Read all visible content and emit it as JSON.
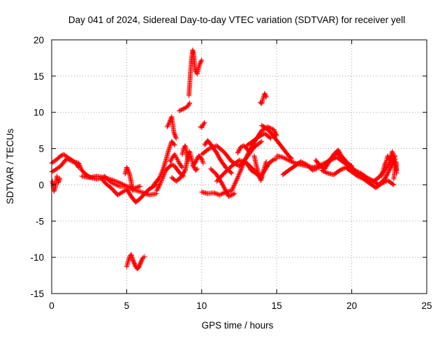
{
  "chart_data": {
    "type": "scatter",
    "title": "Day 041 of 2024, Sidereal Day-to-day VTEC variation (SDTVAR) for receiver yell",
    "xlabel": "GPS time / hours",
    "ylabel": "SDTVAR / TECUs",
    "xlim": [
      0,
      25
    ],
    "ylim": [
      -15,
      20
    ],
    "x_ticks": [
      0,
      5,
      10,
      15,
      20,
      25
    ],
    "y_ticks": [
      -15,
      -10,
      -5,
      0,
      5,
      10,
      15,
      20
    ],
    "x_tick_labels": [
      "0",
      "5",
      "10",
      "15",
      "20",
      "25"
    ],
    "y_tick_labels": [
      "-15",
      "-10",
      "-5",
      "0",
      "5",
      "10",
      "15",
      "20"
    ],
    "grid": true,
    "marker": "+",
    "series": [
      {
        "name": "SDTVAR",
        "color": "#ff0000",
        "traces": [
          {
            "x": [
              0.0,
              0.2,
              0.4,
              0.6,
              0.8,
              1.0,
              1.2,
              1.5,
              1.8,
              2.0,
              2.3,
              2.6,
              3.0,
              3.3,
              3.6,
              4.0,
              4.4,
              4.8,
              5.0,
              5.3,
              5.6,
              5.9,
              6.2,
              6.5,
              6.8,
              7.0
            ],
            "y": [
              3.0,
              3.3,
              3.6,
              4.0,
              4.2,
              3.9,
              3.6,
              3.2,
              3.0,
              2.0,
              1.4,
              1.0,
              0.8,
              0.9,
              0.2,
              -0.5,
              -1.4,
              -0.9,
              -0.6,
              -1.6,
              -2.4,
              -1.9,
              -1.2,
              -0.6,
              -0.2,
              0.1
            ]
          },
          {
            "x": [
              0.0,
              0.2,
              0.4,
              0.6,
              0.8,
              1.0,
              1.3,
              1.6,
              1.8
            ],
            "y": [
              1.8,
              2.0,
              2.3,
              2.6,
              3.1,
              3.6,
              3.3,
              3.0,
              2.4
            ]
          },
          {
            "x": [
              0.05,
              0.15,
              0.25,
              0.35,
              0.45,
              0.55
            ],
            "y": [
              0.5,
              -0.9,
              -0.3,
              1.2,
              0.3,
              0.9
            ]
          },
          {
            "x": [
              2.0,
              2.5,
              3.0,
              3.5,
              4.0,
              4.5,
              5.0,
              5.5,
              6.0,
              6.5,
              7.0
            ],
            "y": [
              1.2,
              1.0,
              1.2,
              1.0,
              0.7,
              0.3,
              -0.2,
              -0.7,
              -1.0,
              -1.4,
              -1.2
            ]
          },
          {
            "x": [
              3.5,
              4.0,
              4.5,
              5.0,
              5.5,
              5.9
            ],
            "y": [
              1.2,
              0.3,
              -0.2,
              -0.2,
              -0.5,
              -0.2
            ]
          },
          {
            "x": [
              4.9,
              5.0,
              5.1,
              5.2,
              5.3,
              5.4
            ],
            "y": [
              1.5,
              2.4,
              2.0,
              1.4,
              0.4,
              -0.8
            ]
          },
          {
            "x": [
              5.0,
              5.1,
              5.2,
              5.3,
              5.4,
              5.5,
              5.6,
              5.7,
              5.8,
              5.9,
              6.0,
              6.1,
              6.2
            ],
            "y": [
              -11.3,
              -10.5,
              -9.9,
              -9.6,
              -10.3,
              -10.8,
              -11.3,
              -11.6,
              -11.4,
              -10.9,
              -10.4,
              -10.0,
              -9.9
            ]
          },
          {
            "x": [
              6.8,
              7.0,
              7.2,
              7.4,
              7.6,
              7.8,
              8.0,
              8.2
            ],
            "y": [
              0.0,
              0.5,
              1.0,
              2.0,
              3.3,
              4.8,
              6.0,
              5.5
            ]
          },
          {
            "x": [
              7.0,
              7.2,
              7.4,
              7.6,
              7.8,
              8.0,
              8.2,
              8.4,
              8.6,
              8.8
            ],
            "y": [
              -0.8,
              0.0,
              1.0,
              2.0,
              2.4,
              2.8,
              2.6,
              2.0,
              1.5,
              1.2
            ]
          },
          {
            "x": [
              7.7,
              7.85,
              8.0,
              8.15,
              8.3
            ],
            "y": [
              8.0,
              8.6,
              9.4,
              7.2,
              6.4
            ]
          },
          {
            "x": [
              7.9,
              8.05,
              8.2,
              8.35,
              8.5,
              8.7
            ],
            "y": [
              3.2,
              3.8,
              4.2,
              3.6,
              3.0,
              2.4
            ]
          },
          {
            "x": [
              8.0,
              8.3,
              8.6,
              8.9,
              9.0,
              9.1,
              9.2,
              9.3,
              9.4,
              9.5,
              9.6,
              9.7
            ],
            "y": [
              1.0,
              0.5,
              1.0,
              2.0,
              3.0,
              4.0,
              4.6,
              3.8,
              3.0,
              2.4,
              2.0,
              2.2
            ]
          },
          {
            "x": [
              8.7,
              8.8,
              8.9,
              9.0,
              9.1
            ],
            "y": [
              4.2,
              5.0,
              5.4,
              4.4,
              3.4
            ]
          },
          {
            "x": [
              8.5,
              8.7,
              8.9,
              9.1,
              9.2
            ],
            "y": [
              10.2,
              10.4,
              10.6,
              10.9,
              11.3
            ]
          },
          {
            "x": [
              9.15,
              9.2,
              9.25,
              9.3,
              9.35,
              9.4,
              9.45,
              9.5,
              9.55,
              9.6,
              9.7,
              9.8,
              9.9,
              10.0
            ],
            "y": [
              12.3,
              13.8,
              15.5,
              16.8,
              17.8,
              18.6,
              18.2,
              17.2,
              16.0,
              15.6,
              15.3,
              16.2,
              16.8,
              17.2
            ]
          },
          {
            "x": [
              9.4,
              9.6,
              9.8,
              10.0,
              10.1
            ],
            "y": [
              2.6,
              3.2,
              4.0,
              3.6,
              3.0
            ]
          },
          {
            "x": [
              9.9,
              10.0,
              10.1,
              10.2
            ],
            "y": [
              8.0,
              7.9,
              8.3,
              8.6
            ]
          },
          {
            "x": [
              10.0,
              10.4,
              10.8,
              11.2,
              11.6,
              12.0,
              12.4,
              12.8,
              13.2,
              13.6,
              14.0,
              14.4,
              14.8,
              15.0
            ],
            "y": [
              -1.0,
              -1.2,
              -1.1,
              -1.4,
              -1.0,
              -0.8,
              1.0,
              3.0,
              4.8,
              6.2,
              7.5,
              8.0,
              7.6,
              6.8
            ]
          },
          {
            "x": [
              10.0,
              10.5,
              11.0,
              11.5,
              12.0,
              12.5,
              13.0,
              13.5,
              14.0
            ],
            "y": [
              4.2,
              5.0,
              5.4,
              4.5,
              3.2,
              2.6,
              3.8,
              5.2,
              6.0
            ]
          },
          {
            "x": [
              10.2,
              10.4,
              10.6,
              10.8,
              11.0,
              11.2,
              11.4,
              11.6,
              11.8,
              12.0
            ],
            "y": [
              5.5,
              6.1,
              5.6,
              5.0,
              4.4,
              3.6,
              3.0,
              2.4,
              2.0,
              1.6
            ]
          },
          {
            "x": [
              10.6,
              11.0,
              11.4,
              11.8,
              12.2
            ],
            "y": [
              2.2,
              1.4,
              0.0,
              -1.6,
              -1.2
            ]
          },
          {
            "x": [
              11.0,
              11.5,
              12.0,
              12.5,
              13.0,
              13.5,
              14.0
            ],
            "y": [
              0.5,
              1.6,
              2.6,
              3.4,
              3.0,
              2.0,
              1.0
            ]
          },
          {
            "x": [
              12.4,
              12.6,
              12.8,
              13.0,
              13.2
            ],
            "y": [
              4.4,
              5.2,
              5.4,
              5.0,
              4.5
            ]
          },
          {
            "x": [
              13.0,
              13.4,
              13.8,
              14.2,
              14.6
            ],
            "y": [
              5.4,
              6.0,
              6.6,
              7.1,
              6.4
            ]
          },
          {
            "x": [
              13.0,
              13.3,
              13.6,
              13.9,
              14.2,
              14.5,
              14.8,
              15.0
            ],
            "y": [
              3.0,
              2.0,
              1.6,
              1.0,
              2.0,
              3.0,
              3.5,
              3.6
            ]
          },
          {
            "x": [
              13.5,
              13.65,
              13.8,
              13.95,
              14.1,
              14.3
            ],
            "y": [
              4.0,
              2.6,
              1.4,
              0.6,
              1.8,
              3.2
            ]
          },
          {
            "x": [
              13.9,
              14.0,
              14.1,
              14.2,
              14.3
            ],
            "y": [
              11.4,
              11.2,
              12.0,
              12.6,
              12.1
            ]
          },
          {
            "x": [
              14.0,
              14.3,
              14.6,
              14.9,
              15.2,
              15.5,
              15.8,
              16.0
            ],
            "y": [
              8.2,
              7.8,
              7.2,
              6.4,
              5.6,
              4.8,
              4.0,
              3.6
            ]
          },
          {
            "x": [
              15.0,
              15.4,
              15.8,
              16.2,
              16.6,
              17.0,
              17.4,
              17.8,
              18.2,
              18.6,
              19.0,
              19.4,
              19.8,
              20.2,
              20.6,
              21.0,
              21.4,
              21.8,
              22.2,
              22.6,
              22.9
            ],
            "y": [
              4.0,
              3.8,
              3.4,
              3.0,
              2.8,
              2.6,
              2.4,
              2.6,
              3.0,
              3.4,
              3.8,
              3.2,
              2.6,
              2.0,
              1.2,
              0.6,
              0.4,
              1.0,
              2.0,
              3.2,
              4.0
            ]
          },
          {
            "x": [
              15.4,
              15.8,
              16.2,
              16.6,
              17.0,
              17.4,
              17.8,
              18.2,
              18.6,
              19.0,
              19.4,
              19.8,
              20.2,
              20.6,
              21.0,
              21.4,
              21.8,
              22.2,
              22.6,
              22.9
            ],
            "y": [
              1.4,
              2.0,
              2.6,
              3.2,
              2.8,
              2.0,
              2.4,
              2.8,
              3.6,
              4.4,
              3.8,
              2.8,
              2.0,
              1.6,
              1.0,
              0.6,
              0.0,
              0.8,
              2.4,
              3.6
            ]
          },
          {
            "x": [
              17.6,
              17.9,
              18.2,
              18.5,
              18.8,
              19.1,
              19.4,
              19.7,
              20.0
            ],
            "y": [
              3.4,
              2.6,
              2.2,
              3.2,
              4.2,
              4.8,
              3.6,
              3.0,
              2.6
            ]
          },
          {
            "x": [
              18.0,
              18.4,
              18.8,
              19.2,
              19.6,
              20.0,
              20.4,
              20.8,
              21.2,
              21.6,
              22.0,
              22.4,
              22.8
            ],
            "y": [
              2.0,
              1.6,
              1.4,
              2.0,
              2.4,
              1.8,
              1.2,
              0.8,
              0.2,
              -0.4,
              0.2,
              0.6,
              0.0
            ]
          },
          {
            "x": [
              22.0,
              22.1,
              22.2,
              22.3,
              22.4,
              22.5,
              22.6,
              22.7,
              22.8,
              22.9,
              23.0
            ],
            "y": [
              1.2,
              2.0,
              2.8,
              3.2,
              4.0,
              3.4,
              3.8,
              4.6,
              3.6,
              2.4,
              1.6
            ]
          },
          {
            "x": [
              22.8,
              22.85,
              22.9,
              22.95,
              23.0
            ],
            "y": [
              0.8,
              1.6,
              2.4,
              3.2,
              2.0
            ]
          }
        ]
      }
    ]
  }
}
